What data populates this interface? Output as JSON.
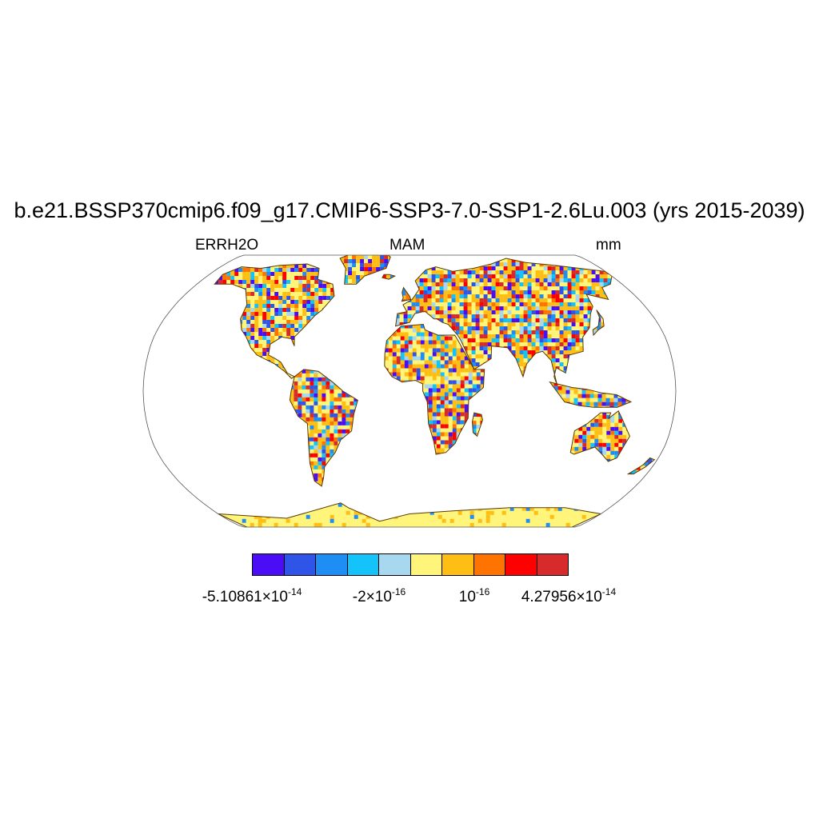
{
  "title": "b.e21.BSSP370cmip6.f09_g17.CMIP6-SSP3-7.0-SSP1-2.6Lu.003 (yrs 2015-2039)",
  "left_string": "ERRH2O",
  "center_string": "MAM",
  "right_string": "mm",
  "projection": "Robinson",
  "colorbar": {
    "colors": [
      "#4a0df5",
      "#2e55e8",
      "#1e8ef5",
      "#14c3fa",
      "#a8d8f0",
      "#fff57a",
      "#ffbe14",
      "#ff7300",
      "#ff0000",
      "#d72a2a"
    ],
    "labels": [
      {
        "mantissa": "-5.10861×10",
        "exp": "-14"
      },
      {
        "mantissa": "-2×10",
        "exp": "-16"
      },
      {
        "mantissa": "10",
        "exp": "-16"
      },
      {
        "mantissa": "4.27956×10",
        "exp": "-14"
      }
    ]
  },
  "map_colors": {
    "ocean": "#ffffff",
    "coastline": "#5a3a00",
    "border": "#555555"
  }
}
